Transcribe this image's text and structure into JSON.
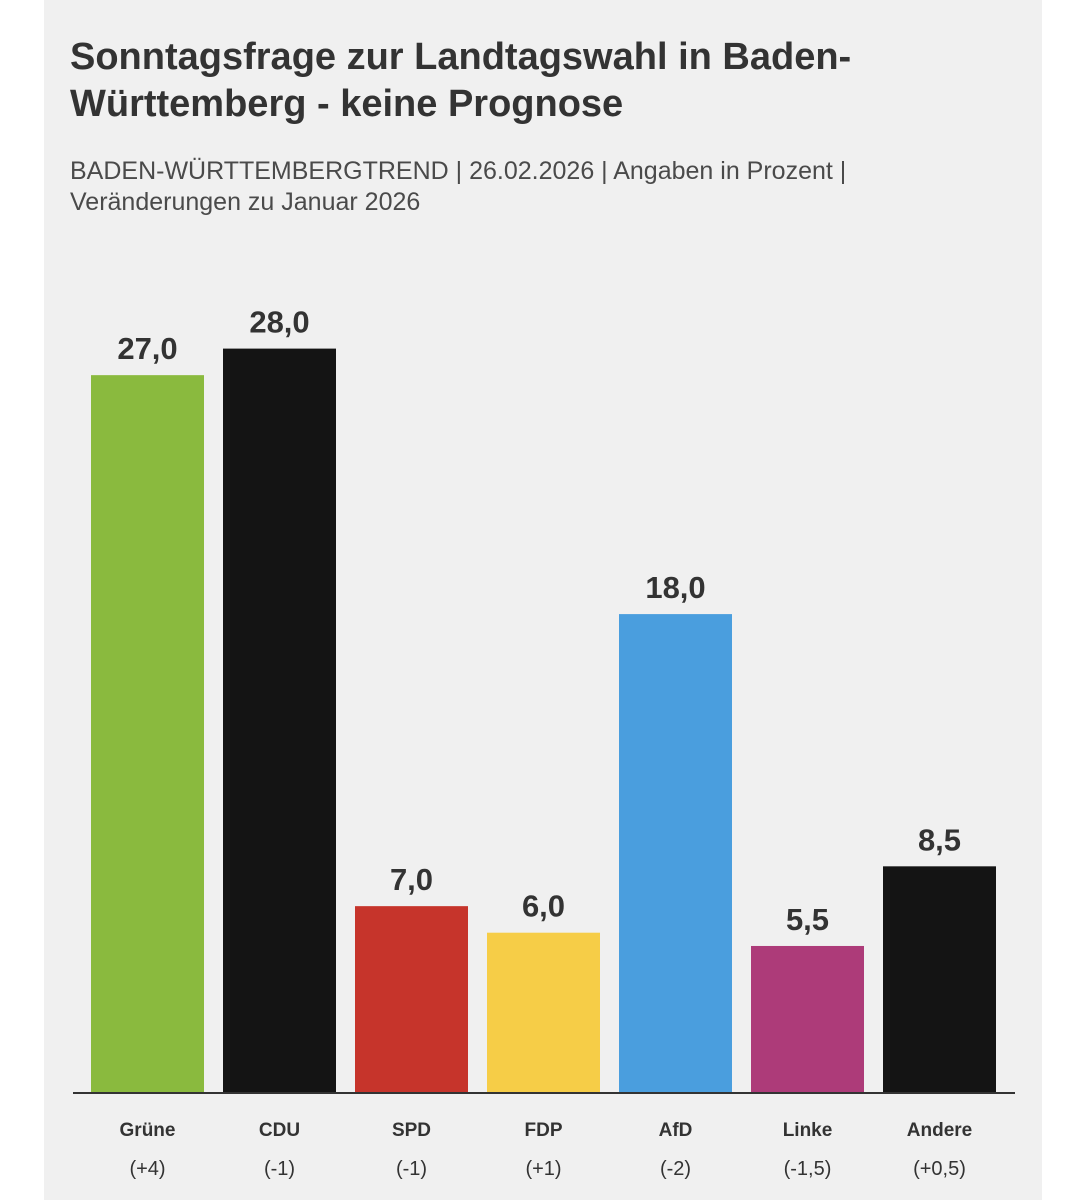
{
  "chart_data": {
    "type": "bar",
    "title": "Sonntagsfrage zur Landtagswahl in Baden-Württemberg - keine Prognose",
    "subtitle": "BADEN-WÜRTTEMBERGTREND | 26.02.2026 | Angaben in Prozent | Veränderungen zu Januar 2026",
    "categories": [
      "Grüne",
      "CDU",
      "SPD",
      "FDP",
      "AfD",
      "Linke",
      "Andere"
    ],
    "values": [
      27.0,
      28.0,
      7.0,
      6.0,
      18.0,
      5.5,
      8.5
    ],
    "value_labels": [
      "27,0",
      "28,0",
      "7,0",
      "6,0",
      "18,0",
      "5,5",
      "8,5"
    ],
    "changes": [
      "(+4)",
      "(-1)",
      "(-1)",
      "(+1)",
      "(-2)",
      "(-1,5)",
      "(+0,5)"
    ],
    "colors": [
      "#8aba3e",
      "#141414",
      "#c6342b",
      "#f6cd47",
      "#4a9ede",
      "#ad3b79",
      "#141414"
    ],
    "xlabel": "",
    "ylabel": "",
    "ylim": [
      0,
      28
    ],
    "grid": false,
    "legend": "none"
  }
}
